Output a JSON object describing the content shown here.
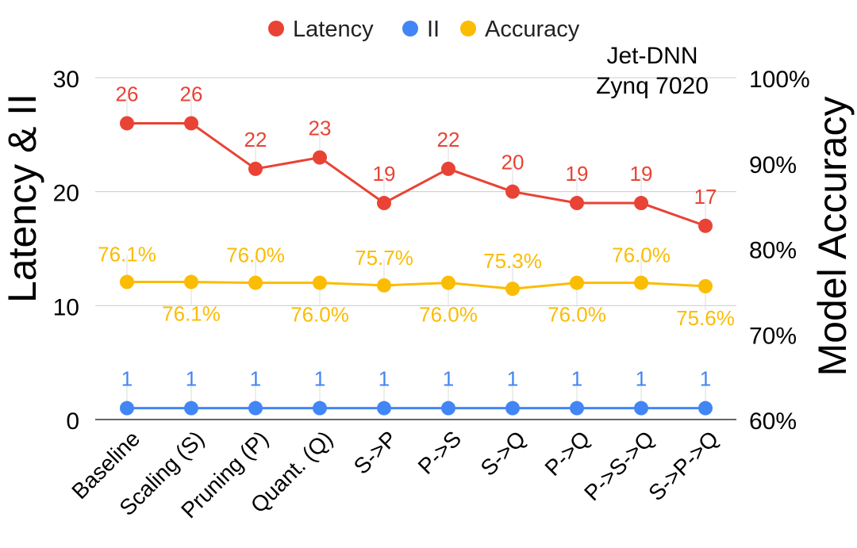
{
  "chart_data": {
    "type": "line",
    "annotation": [
      "Jet-DNN",
      "Zynq 7020"
    ],
    "categories": [
      "Baseline",
      "Scaling (S)",
      "Pruning (P)",
      "Quant. (Q)",
      "S->P",
      "P->S",
      "S->Q",
      "P->Q",
      "P->S->Q",
      "S->P->Q"
    ],
    "y_left": {
      "label": "Latency & II",
      "ylim": [
        0,
        30
      ],
      "ticks": [
        "0",
        "10",
        "20",
        "30"
      ]
    },
    "y_right": {
      "label": "Model Accuracy",
      "ylim": [
        60,
        100
      ],
      "ticks": [
        "60%",
        "70%",
        "80%",
        "90%",
        "100%"
      ]
    },
    "legend": {
      "placement": "top-center"
    },
    "grid": true,
    "series": [
      {
        "name": "Latency",
        "axis": "left",
        "color": "#e84335",
        "values": [
          26,
          26,
          22,
          23,
          19,
          22,
          20,
          19,
          19,
          17
        ],
        "labels": [
          "26",
          "26",
          "22",
          "23",
          "19",
          "22",
          "20",
          "19",
          "19",
          "17"
        ]
      },
      {
        "name": "II",
        "axis": "left",
        "color": "#4285f4",
        "values": [
          1,
          1,
          1,
          1,
          1,
          1,
          1,
          1,
          1,
          1
        ],
        "labels": [
          "1",
          "1",
          "1",
          "1",
          "1",
          "1",
          "1",
          "1",
          "1",
          "1"
        ]
      },
      {
        "name": "Accuracy",
        "axis": "right",
        "color": "#fbbc04",
        "values": [
          76.1,
          76.1,
          76.0,
          76.0,
          75.7,
          76.0,
          75.3,
          76.0,
          76.0,
          75.6
        ],
        "labels": [
          "76.1%",
          "76.1%",
          "76.0%",
          "76.0%",
          "75.7%",
          "76.0%",
          "75.3%",
          "76.0%",
          "76.0%",
          "75.6%"
        ]
      }
    ]
  }
}
